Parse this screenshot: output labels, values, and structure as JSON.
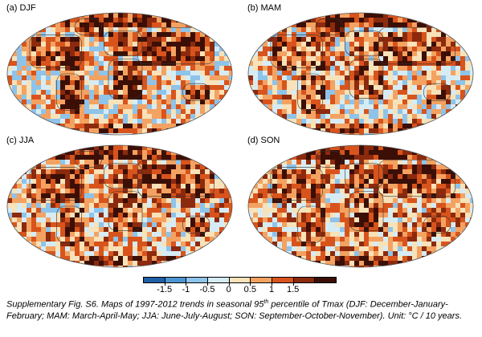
{
  "panels": [
    {
      "label": "(a) DJF"
    },
    {
      "label": "(b) MAM"
    },
    {
      "label": "(c) JJA"
    },
    {
      "label": "(d) SON"
    }
  ],
  "colorbar": {
    "ticks": [
      "-1.5",
      "-1",
      "-0.5",
      "0",
      "0.5",
      "1",
      "1.5"
    ],
    "colors": [
      "#1f5fa8",
      "#4e93d1",
      "#8ec3ea",
      "#d6ecf5",
      "#f7e2b9",
      "#f4a261",
      "#d8541c",
      "#8c2a0e",
      "#3b0f06"
    ]
  },
  "caption": {
    "part1": "Supplementary Fig. S6. Maps of 1997-2012 trends in seasonal 95",
    "sup": "th",
    "part2": " percentile of Tmax (DJF: December-January-February; MAM: March-April-May; JJA: June-July-August; SON: September-October-November). Unit: °C / 10 years."
  }
}
